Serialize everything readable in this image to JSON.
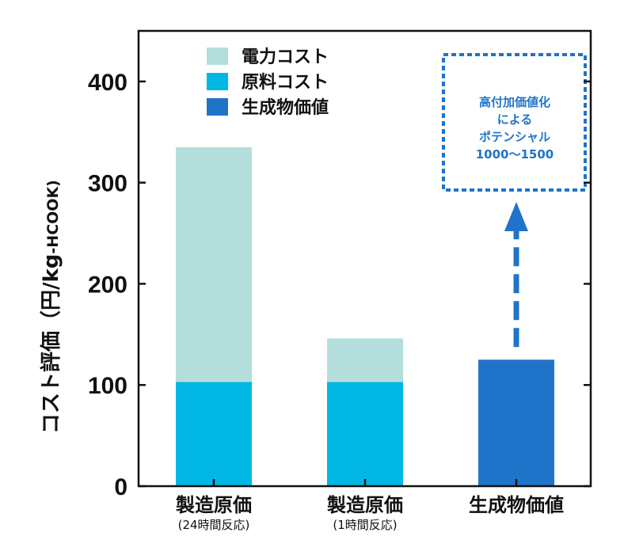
{
  "chart_data": {
    "type": "bar",
    "stacked": true,
    "categories": [
      "製造原価",
      "製造原価",
      "生成物価値"
    ],
    "category_sublabels": [
      "(24時間反応)",
      "(1時間反応)",
      ""
    ],
    "series": [
      {
        "name": "原料コスト",
        "color": "#00b7e4",
        "values": [
          103,
          103,
          0
        ]
      },
      {
        "name": "電力コスト",
        "color": "#b3dedc",
        "values": [
          232,
          43,
          0
        ]
      },
      {
        "name": "生成物価値",
        "color": "#1f74c9",
        "values": [
          0,
          0,
          125
        ]
      }
    ],
    "legend_order": [
      "電力コスト",
      "原料コスト",
      "生成物価値"
    ],
    "legend_position": "top-left",
    "ylabel": "コスト評価（円/kg",
    "ylabel_unit": "-HCOOK)",
    "ylim": [
      0,
      450
    ],
    "yticks": [
      0,
      100,
      200,
      300,
      400
    ],
    "grid": false,
    "annotation": {
      "lines": [
        "高付加価値化",
        "による",
        "ポテンシャル",
        "1000〜1500"
      ],
      "color": "#1f74c9",
      "arrow_from_category": 2
    }
  }
}
